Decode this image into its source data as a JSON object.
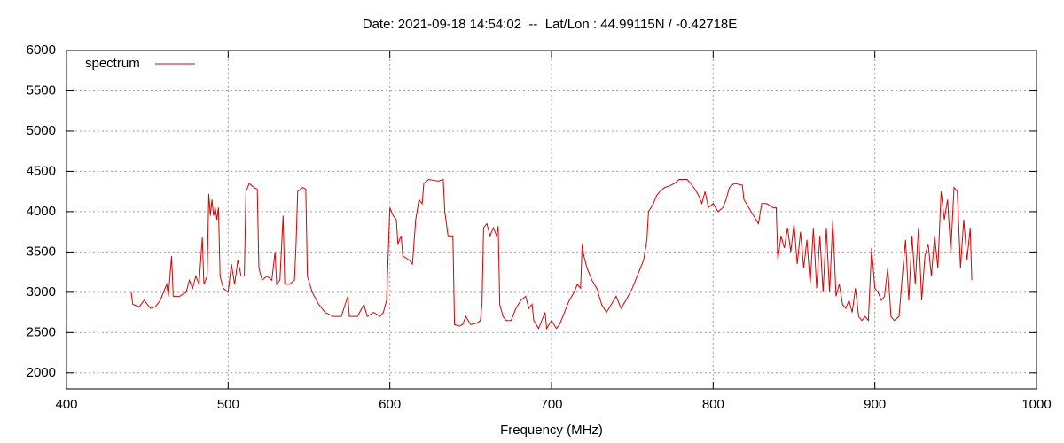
{
  "chart_data": {
    "type": "line",
    "title": "Date: 2021-09-18 14:54:02  --  Lat/Lon : 44.99115N / -0.42718E",
    "xlabel": "Frequency (MHz)",
    "xlim": [
      400,
      1000
    ],
    "xticks": [
      400,
      500,
      600,
      700,
      800,
      900,
      1000
    ],
    "ylim": [
      1800,
      6000
    ],
    "yticks": [
      2000,
      2500,
      3000,
      3500,
      4000,
      4500,
      5000,
      5500,
      6000
    ],
    "grid": true,
    "legend": "top-left",
    "x": [
      440,
      441,
      445,
      448,
      452,
      455,
      458,
      460,
      462,
      463,
      465,
      466,
      470,
      474,
      476,
      478,
      480,
      482,
      484,
      485,
      487,
      488,
      489,
      490,
      491,
      492,
      493,
      494,
      495,
      497,
      500,
      502,
      504,
      506,
      508,
      510,
      511,
      513,
      516,
      518,
      519,
      521,
      524,
      527,
      529,
      530,
      532,
      534,
      535,
      538,
      541,
      542,
      543,
      546,
      548,
      549,
      552,
      556,
      560,
      565,
      570,
      574,
      575,
      580,
      584,
      586,
      590,
      594,
      596,
      598,
      600,
      602,
      604,
      605,
      607,
      608,
      612,
      614,
      616,
      618,
      620,
      621,
      624,
      630,
      633,
      634,
      636,
      639,
      640,
      643,
      645,
      647,
      650,
      654,
      656,
      657,
      658,
      660,
      662,
      664,
      666,
      667,
      668,
      670,
      672,
      675,
      678,
      681,
      684,
      686,
      688,
      689,
      692,
      694,
      696,
      697,
      700,
      703,
      705,
      708,
      711,
      714,
      716,
      718,
      719,
      720,
      722,
      725,
      728,
      731,
      734,
      737,
      740,
      743,
      746,
      750,
      754,
      757,
      759,
      760,
      763,
      765,
      767,
      770,
      773,
      776,
      779,
      784,
      788,
      791,
      793,
      795,
      797,
      800,
      803,
      806,
      808,
      810,
      813,
      818,
      819,
      822,
      825,
      828,
      830,
      833,
      837,
      839,
      840,
      842,
      844,
      846,
      848,
      850,
      852,
      854,
      856,
      858,
      860,
      862,
      864,
      866,
      868,
      870,
      872,
      874,
      876,
      878,
      880,
      882,
      884,
      886,
      888,
      890,
      892,
      894,
      896,
      898,
      900,
      902,
      904,
      906,
      908,
      910,
      912,
      915,
      917,
      919,
      921,
      923,
      925,
      927,
      929,
      931,
      933,
      935,
      937,
      939,
      941,
      943,
      945,
      947,
      949,
      951,
      953,
      955,
      957,
      959,
      960
    ],
    "series": [
      {
        "name": "spectrum",
        "color": "#dd0000",
        "values": [
          3000,
          2850,
          2820,
          2900,
          2800,
          2820,
          2900,
          3000,
          3100,
          2950,
          3450,
          2950,
          2950,
          3000,
          3150,
          3050,
          3200,
          3100,
          3680,
          3100,
          3200,
          4220,
          3950,
          4150,
          3950,
          4050,
          3900,
          4050,
          3200,
          3050,
          3000,
          3350,
          3100,
          3400,
          3200,
          3200,
          4250,
          4350,
          4300,
          4280,
          3300,
          3150,
          3200,
          3150,
          3500,
          3100,
          3150,
          3950,
          3100,
          3100,
          3150,
          3600,
          4250,
          4300,
          4280,
          3200,
          3000,
          2850,
          2750,
          2700,
          2700,
          2950,
          2700,
          2700,
          2850,
          2700,
          2750,
          2700,
          2750,
          2900,
          4050,
          3950,
          3900,
          3600,
          3700,
          3450,
          3400,
          3350,
          3900,
          4150,
          4100,
          4350,
          4400,
          4380,
          4400,
          4000,
          3700,
          3700,
          2600,
          2580,
          2600,
          2700,
          2600,
          2620,
          2650,
          2850,
          3800,
          3850,
          3700,
          3800,
          3700,
          3820,
          2850,
          2700,
          2650,
          2650,
          2800,
          2900,
          2950,
          2800,
          2850,
          2650,
          2550,
          2650,
          2750,
          2550,
          2650,
          2550,
          2600,
          2750,
          2900,
          3000,
          3100,
          3050,
          3600,
          3450,
          3300,
          3150,
          3050,
          2850,
          2750,
          2850,
          2950,
          2800,
          2900,
          3050,
          3250,
          3400,
          3650,
          4000,
          4100,
          4200,
          4250,
          4300,
          4320,
          4350,
          4400,
          4400,
          4300,
          4200,
          4100,
          4250,
          4050,
          4100,
          4000,
          4050,
          4150,
          4300,
          4350,
          4330,
          4150,
          4050,
          3950,
          3850,
          4100,
          4100,
          4050,
          4050,
          3400,
          3700,
          3550,
          3800,
          3500,
          3850,
          3350,
          3750,
          3300,
          3650,
          3100,
          3800,
          3050,
          3700,
          3000,
          3800,
          3000,
          3900,
          2950,
          3100,
          2850,
          2800,
          2900,
          2750,
          3050,
          2700,
          2650,
          2700,
          2650,
          3550,
          3050,
          3000,
          2900,
          2950,
          3300,
          2700,
          2650,
          2700,
          3200,
          3650,
          2900,
          3700,
          3100,
          3800,
          2900,
          3450,
          3600,
          3200,
          3700,
          3300,
          4250,
          3900,
          4150,
          3500,
          4300,
          4250,
          3300,
          3900,
          3400,
          3800,
          3150
        ]
      }
    ]
  }
}
